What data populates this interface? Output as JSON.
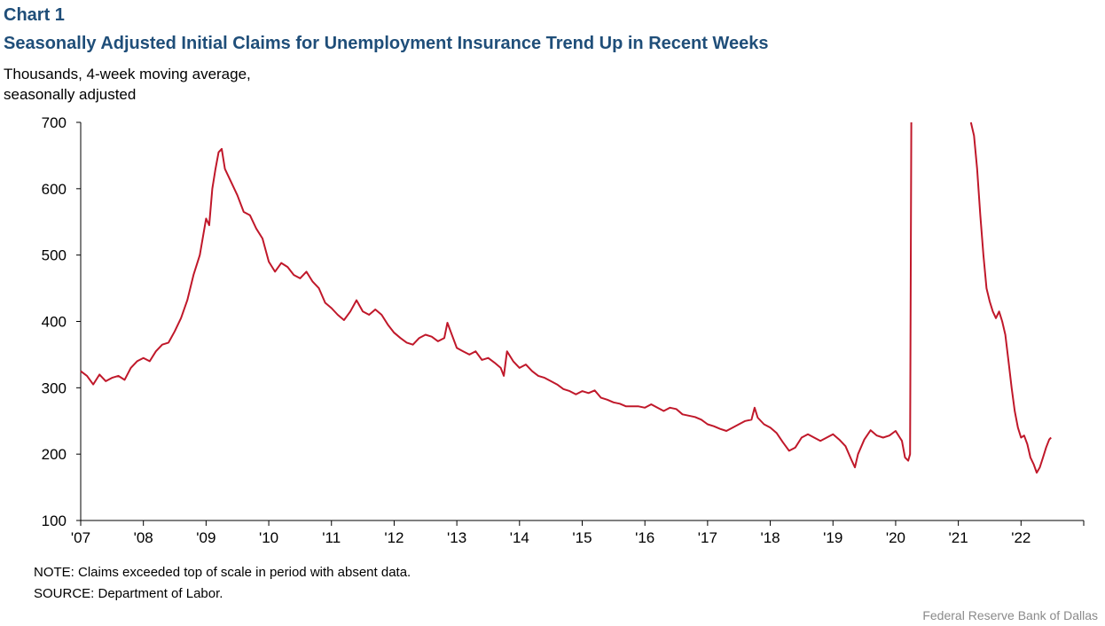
{
  "chart_label": "Chart 1",
  "notes": {
    "note": "NOTE: Claims exceeded top of scale in period with absent data.",
    "source": "SOURCE: Department of Labor.",
    "credit": "Federal Reserve Bank of Dallas"
  },
  "colors": {
    "title": "#1f4e79",
    "series": "#c0182a",
    "axis": "#000000"
  },
  "chart_data": {
    "type": "line",
    "title": "Seasonally Adjusted Initial Claims for Unemployment Insurance Trend Up in Recent Weeks",
    "ylabel_lines": [
      "Thousands, 4-week moving average,",
      "seasonally adjusted"
    ],
    "xlabel": "",
    "ylim": [
      100,
      700
    ],
    "y_ticks": [
      100,
      200,
      300,
      400,
      500,
      600,
      700
    ],
    "xlim": [
      2007.0,
      2023.0
    ],
    "x_ticks": [
      {
        "value": 2007,
        "label": "'07"
      },
      {
        "value": 2008,
        "label": "'08"
      },
      {
        "value": 2009,
        "label": "'09"
      },
      {
        "value": 2010,
        "label": "'10"
      },
      {
        "value": 2011,
        "label": "'11"
      },
      {
        "value": 2012,
        "label": "'12"
      },
      {
        "value": 2013,
        "label": "'13"
      },
      {
        "value": 2014,
        "label": "'14"
      },
      {
        "value": 2015,
        "label": "'15"
      },
      {
        "value": 2016,
        "label": "'16"
      },
      {
        "value": 2017,
        "label": "'17"
      },
      {
        "value": 2018,
        "label": "'18"
      },
      {
        "value": 2019,
        "label": "'19"
      },
      {
        "value": 2020,
        "label": "'20"
      },
      {
        "value": 2021,
        "label": "'21"
      },
      {
        "value": 2022,
        "label": "'22"
      }
    ],
    "grid": false,
    "legend": "none",
    "series": [
      {
        "segments": [
          [
            [
              2007.0,
              325
            ],
            [
              2007.1,
              318
            ],
            [
              2007.2,
              305
            ],
            [
              2007.3,
              320
            ],
            [
              2007.4,
              310
            ],
            [
              2007.5,
              315
            ],
            [
              2007.6,
              318
            ],
            [
              2007.7,
              312
            ],
            [
              2007.8,
              330
            ],
            [
              2007.9,
              340
            ],
            [
              2008.0,
              345
            ],
            [
              2008.1,
              340
            ],
            [
              2008.2,
              355
            ],
            [
              2008.3,
              365
            ],
            [
              2008.4,
              368
            ],
            [
              2008.5,
              385
            ],
            [
              2008.6,
              405
            ],
            [
              2008.7,
              432
            ],
            [
              2008.8,
              470
            ],
            [
              2008.9,
              500
            ],
            [
              2009.0,
              555
            ],
            [
              2009.05,
              545
            ],
            [
              2009.1,
              600
            ],
            [
              2009.15,
              630
            ],
            [
              2009.2,
              655
            ],
            [
              2009.25,
              660
            ],
            [
              2009.3,
              630
            ],
            [
              2009.4,
              610
            ],
            [
              2009.5,
              590
            ],
            [
              2009.6,
              565
            ],
            [
              2009.7,
              560
            ],
            [
              2009.8,
              540
            ],
            [
              2009.9,
              525
            ],
            [
              2010.0,
              490
            ],
            [
              2010.1,
              475
            ],
            [
              2010.2,
              488
            ],
            [
              2010.3,
              482
            ],
            [
              2010.4,
              470
            ],
            [
              2010.5,
              465
            ],
            [
              2010.6,
              475
            ],
            [
              2010.7,
              460
            ],
            [
              2010.8,
              450
            ],
            [
              2010.9,
              428
            ],
            [
              2011.0,
              420
            ],
            [
              2011.1,
              410
            ],
            [
              2011.2,
              402
            ],
            [
              2011.3,
              415
            ],
            [
              2011.4,
              432
            ],
            [
              2011.5,
              415
            ],
            [
              2011.6,
              410
            ],
            [
              2011.7,
              418
            ],
            [
              2011.8,
              410
            ],
            [
              2011.9,
              395
            ],
            [
              2012.0,
              383
            ],
            [
              2012.1,
              375
            ],
            [
              2012.2,
              368
            ],
            [
              2012.3,
              365
            ],
            [
              2012.4,
              375
            ],
            [
              2012.5,
              380
            ],
            [
              2012.6,
              377
            ],
            [
              2012.7,
              370
            ],
            [
              2012.8,
              375
            ],
            [
              2012.85,
              398
            ],
            [
              2012.9,
              385
            ],
            [
              2013.0,
              360
            ],
            [
              2013.1,
              355
            ],
            [
              2013.2,
              350
            ],
            [
              2013.3,
              355
            ],
            [
              2013.4,
              342
            ],
            [
              2013.5,
              345
            ],
            [
              2013.6,
              338
            ],
            [
              2013.7,
              330
            ],
            [
              2013.75,
              318
            ],
            [
              2013.8,
              355
            ],
            [
              2013.9,
              340
            ],
            [
              2014.0,
              330
            ],
            [
              2014.1,
              335
            ],
            [
              2014.2,
              325
            ],
            [
              2014.3,
              318
            ],
            [
              2014.4,
              315
            ],
            [
              2014.5,
              310
            ],
            [
              2014.6,
              305
            ],
            [
              2014.7,
              298
            ],
            [
              2014.8,
              295
            ],
            [
              2014.9,
              290
            ],
            [
              2015.0,
              295
            ],
            [
              2015.1,
              292
            ],
            [
              2015.2,
              296
            ],
            [
              2015.3,
              285
            ],
            [
              2015.4,
              282
            ],
            [
              2015.5,
              278
            ],
            [
              2015.6,
              276
            ],
            [
              2015.7,
              272
            ],
            [
              2015.8,
              272
            ],
            [
              2015.9,
              272
            ],
            [
              2016.0,
              270
            ],
            [
              2016.1,
              275
            ],
            [
              2016.2,
              270
            ],
            [
              2016.3,
              265
            ],
            [
              2016.4,
              270
            ],
            [
              2016.5,
              268
            ],
            [
              2016.6,
              260
            ],
            [
              2016.7,
              258
            ],
            [
              2016.8,
              256
            ],
            [
              2016.9,
              252
            ],
            [
              2017.0,
              245
            ],
            [
              2017.1,
              242
            ],
            [
              2017.2,
              238
            ],
            [
              2017.3,
              235
            ],
            [
              2017.4,
              240
            ],
            [
              2017.5,
              245
            ],
            [
              2017.6,
              250
            ],
            [
              2017.7,
              252
            ],
            [
              2017.75,
              270
            ],
            [
              2017.8,
              255
            ],
            [
              2017.9,
              245
            ],
            [
              2018.0,
              240
            ],
            [
              2018.1,
              232
            ],
            [
              2018.2,
              218
            ],
            [
              2018.3,
              205
            ],
            [
              2018.4,
              210
            ],
            [
              2018.5,
              225
            ],
            [
              2018.6,
              230
            ],
            [
              2018.7,
              225
            ],
            [
              2018.8,
              220
            ],
            [
              2018.9,
              225
            ],
            [
              2019.0,
              230
            ],
            [
              2019.1,
              222
            ],
            [
              2019.2,
              212
            ],
            [
              2019.3,
              190
            ],
            [
              2019.35,
              180
            ],
            [
              2019.4,
              200
            ],
            [
              2019.5,
              222
            ],
            [
              2019.6,
              236
            ],
            [
              2019.7,
              228
            ],
            [
              2019.8,
              225
            ],
            [
              2019.9,
              228
            ],
            [
              2020.0,
              235
            ],
            [
              2020.1,
              220
            ],
            [
              2020.15,
              195
            ],
            [
              2020.2,
              190
            ],
            [
              2020.23,
              200
            ],
            [
              2020.25,
              700
            ]
          ],
          [
            [
              2021.2,
              700
            ],
            [
              2021.25,
              680
            ],
            [
              2021.3,
              630
            ],
            [
              2021.35,
              560
            ],
            [
              2021.4,
              500
            ],
            [
              2021.45,
              450
            ],
            [
              2021.5,
              430
            ],
            [
              2021.55,
              415
            ],
            [
              2021.6,
              405
            ],
            [
              2021.65,
              415
            ],
            [
              2021.7,
              400
            ],
            [
              2021.75,
              380
            ],
            [
              2021.8,
              340
            ],
            [
              2021.85,
              300
            ],
            [
              2021.9,
              265
            ],
            [
              2021.95,
              240
            ],
            [
              2022.0,
              225
            ],
            [
              2022.05,
              228
            ],
            [
              2022.1,
              215
            ],
            [
              2022.15,
              195
            ],
            [
              2022.2,
              185
            ],
            [
              2022.25,
              172
            ],
            [
              2022.3,
              180
            ],
            [
              2022.35,
              195
            ],
            [
              2022.4,
              210
            ],
            [
              2022.45,
              222
            ],
            [
              2022.48,
              225
            ]
          ]
        ]
      }
    ]
  }
}
